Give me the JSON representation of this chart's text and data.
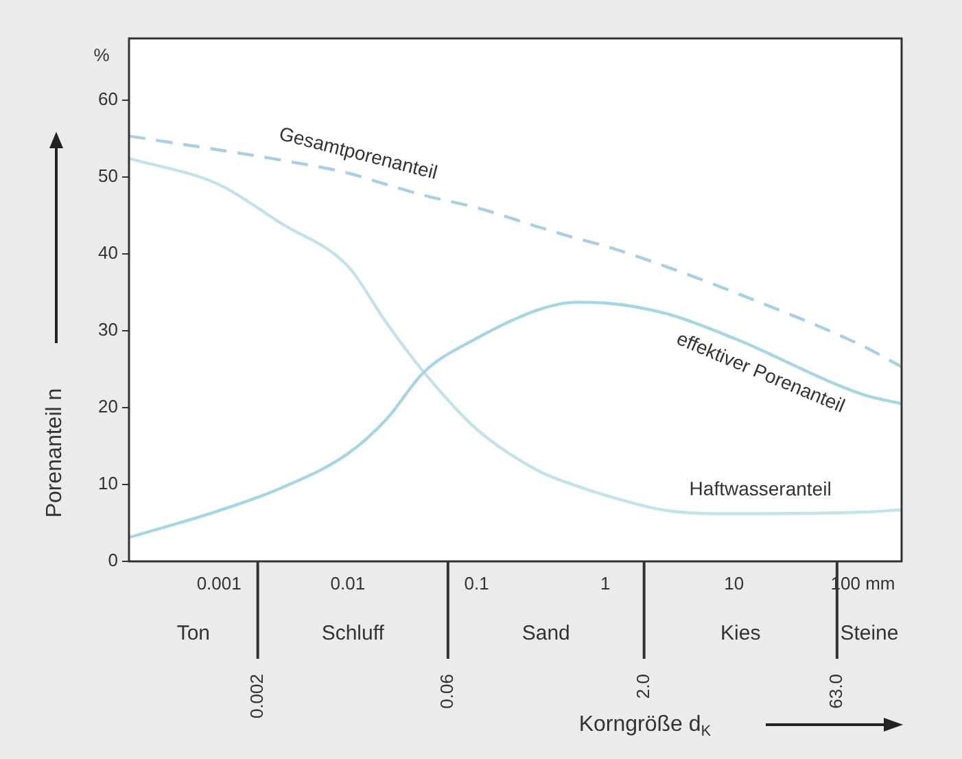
{
  "chart_data": {
    "type": "line",
    "ylabel": "Porenanteil n",
    "annotations": [
      "%",
      "Ton",
      "Schluff",
      "Sand",
      "Kies",
      "Steine",
      "Korngröße d$_{K}$"
    ],
    "log": "x",
    "x": [
      0.0002,
      0.001,
      0.003,
      0.01,
      0.02,
      0.039,
      0.1,
      0.3,
      0.6,
      1,
      3,
      10,
      100,
      200
    ],
    "series": [
      {
        "name": "Gesamtporenanteil",
        "color": "#a9d0e2",
        "line_style": "dashed",
        "values": [
          55.3,
          53.5,
          52.2,
          50.5,
          49,
          47.6,
          46,
          43.5,
          42,
          41,
          38.3,
          35,
          28,
          25.3
        ]
      },
      {
        "name": "effektiver Porenanteil",
        "color": "#a6d6e2",
        "values": [
          3.1,
          6.6,
          9.5,
          14,
          18.5,
          24.6,
          29,
          32.7,
          33.7,
          33.6,
          32.2,
          29,
          21.7,
          20.5
        ]
      },
      {
        "name": "Haftwasseranteil",
        "color": "#c3e2ea",
        "values": [
          52.4,
          49,
          44,
          38.4,
          31,
          24.6,
          17.2,
          11.8,
          9.8,
          8.6,
          6.6,
          6.2,
          6.4,
          6.7
        ]
      }
    ],
    "xlim": [
      0.0002,
      200
    ],
    "xticks": [
      0.001,
      0.01,
      0.1,
      1,
      10,
      {
        "value": 100,
        "label": "100 mm"
      }
    ],
    "ylim": [
      0,
      68
    ],
    "yticks": [
      0,
      10,
      20,
      30,
      40,
      50,
      60
    ],
    "ref_lines": [
      {
        "axis": "x",
        "value": 0.002,
        "label": "0.002"
      },
      {
        "axis": "x",
        "value": 0.06,
        "label": "0.06"
      },
      {
        "axis": "x",
        "value": 2,
        "label": "2.0"
      },
      {
        "axis": "x",
        "value": 63,
        "label": "63.0"
      }
    ],
    "grid": false,
    "legend": false,
    "marker": "none"
  }
}
